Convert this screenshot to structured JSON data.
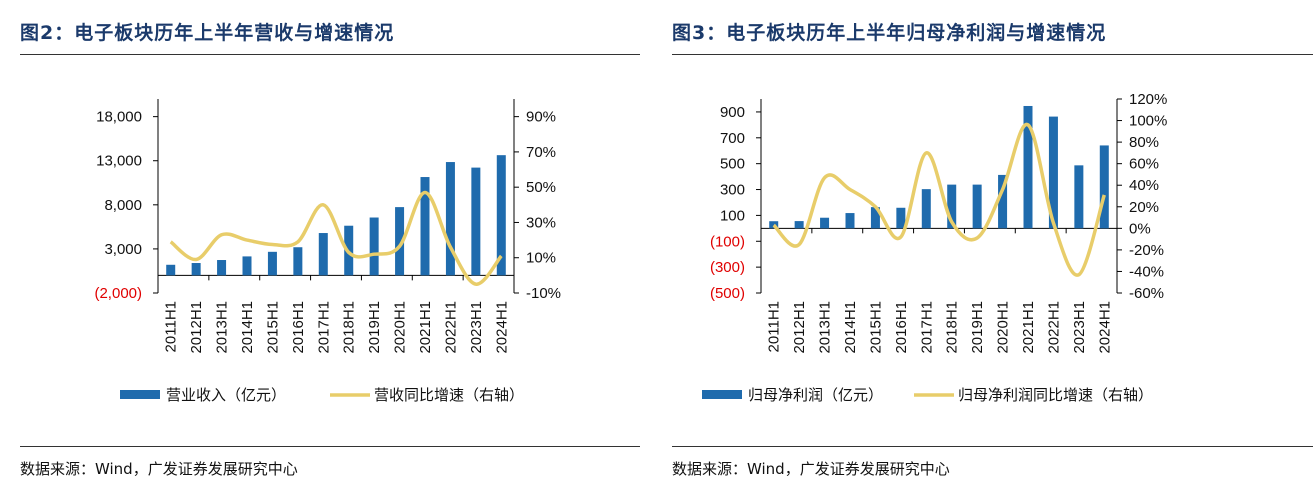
{
  "chart_data": [
    {
      "type": "bar+line",
      "title": "图2：电子板块历年上半年营收与增速情况",
      "categories": [
        "2011H1",
        "2012H1",
        "2013H1",
        "2014H1",
        "2015H1",
        "2016H1",
        "2017H1",
        "2018H1",
        "2019H1",
        "2020H1",
        "2021H1",
        "2022H1",
        "2023H1",
        "2024H1"
      ],
      "series": [
        {
          "name": "营业收入（亿元）",
          "type": "bar",
          "axis": "left",
          "color": "#1f6bad",
          "values": [
            1200,
            1400,
            1740,
            2150,
            2670,
            3190,
            4800,
            5630,
            6560,
            7740,
            11150,
            12850,
            12220,
            13630
          ]
        },
        {
          "name": "营收同比增速（右轴）",
          "type": "line",
          "axis": "right",
          "color": "#e8cd6a",
          "values": [
            19,
            9,
            23,
            20,
            17.5,
            19,
            40,
            13,
            12,
            16.5,
            47,
            16,
            -5,
            11
          ]
        }
      ],
      "left_ticks": [
        "18,000",
        "13,000",
        "8,000",
        "3,000",
        "(2,000)"
      ],
      "left_tick_values": [
        18000,
        13000,
        8000,
        3000,
        -2000
      ],
      "ylim_left": [
        -2000,
        20000
      ],
      "right_ticks": [
        "90%",
        "70%",
        "50%",
        "30%",
        "10%",
        "-10%"
      ],
      "right_tick_values": [
        90,
        70,
        50,
        30,
        10,
        -10
      ],
      "ylim_right": [
        -10,
        100
      ],
      "negative_tick_color": "#e00000",
      "source": "数据来源：Wind，广发证券发展研究中心"
    },
    {
      "type": "bar+line",
      "title": "图3：电子板块历年上半年归母净利润与增速情况",
      "categories": [
        "2011H1",
        "2012H1",
        "2013H1",
        "2014H1",
        "2015H1",
        "2016H1",
        "2017H1",
        "2018H1",
        "2019H1",
        "2020H1",
        "2021H1",
        "2022H1",
        "2023H1",
        "2024H1"
      ],
      "series": [
        {
          "name": "归母净利润（亿元）",
          "type": "bar",
          "axis": "left",
          "color": "#1f6bad",
          "values": [
            55,
            56,
            82,
            118,
            164,
            159,
            303,
            338,
            338,
            413,
            946,
            864,
            487,
            641
          ]
        },
        {
          "name": "归母净利润同比增速（右轴）",
          "type": "line",
          "axis": "right",
          "color": "#e8cd6a",
          "values": [
            3,
            -15,
            47,
            36,
            20,
            -8,
            70,
            6,
            -9,
            36,
            96,
            5,
            -43,
            31
          ]
        }
      ],
      "left_ticks": [
        "900",
        "700",
        "500",
        "300",
        "100",
        "(100)",
        "(300)",
        "(500)"
      ],
      "left_tick_values": [
        900,
        700,
        500,
        300,
        100,
        -100,
        -300,
        -500
      ],
      "ylim_left": [
        -500,
        1000
      ],
      "right_ticks": [
        "120%",
        "100%",
        "80%",
        "60%",
        "40%",
        "20%",
        "0%",
        "-20%",
        "-40%",
        "-60%"
      ],
      "right_tick_values": [
        120,
        100,
        80,
        60,
        40,
        20,
        0,
        -20,
        -40,
        -60
      ],
      "ylim_right": [
        -60,
        120
      ],
      "negative_tick_color": "#e00000",
      "source": "数据来源：Wind，广发证券发展研究中心"
    }
  ]
}
